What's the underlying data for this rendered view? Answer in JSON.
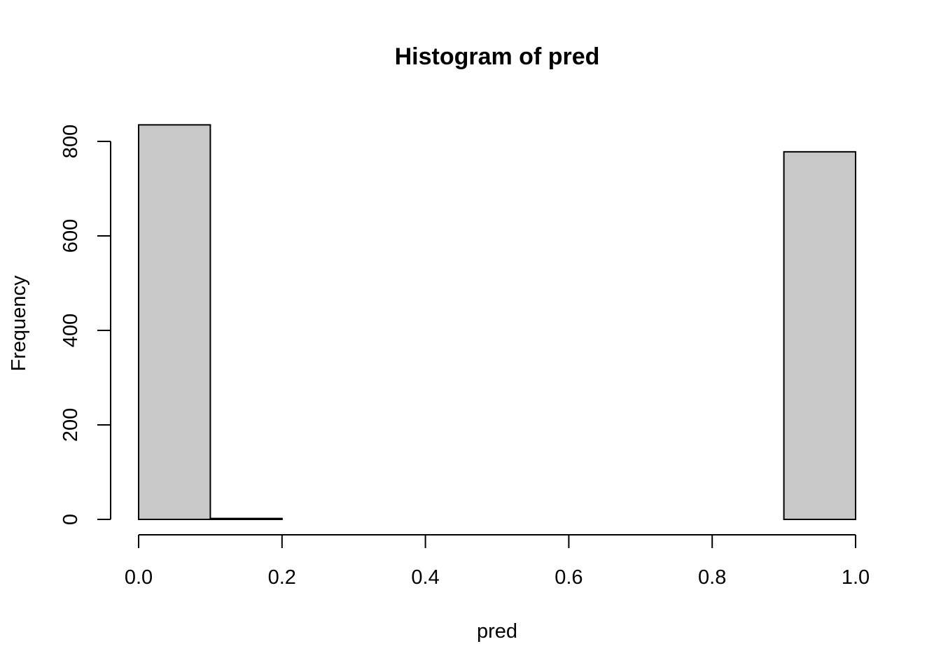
{
  "chart_data": {
    "type": "bar",
    "title": "Histogram of pred",
    "xlabel": "pred",
    "ylabel": "Frequency",
    "bins": [
      {
        "from": 0.0,
        "to": 0.1,
        "count": 835
      },
      {
        "from": 0.1,
        "to": 0.2,
        "count": 2
      },
      {
        "from": 0.2,
        "to": 0.3,
        "count": 0
      },
      {
        "from": 0.3,
        "to": 0.4,
        "count": 0
      },
      {
        "from": 0.4,
        "to": 0.5,
        "count": 0
      },
      {
        "from": 0.5,
        "to": 0.6,
        "count": 0
      },
      {
        "from": 0.6,
        "to": 0.7,
        "count": 0
      },
      {
        "from": 0.7,
        "to": 0.8,
        "count": 0
      },
      {
        "from": 0.8,
        "to": 0.9,
        "count": 0
      },
      {
        "from": 0.9,
        "to": 1.0,
        "count": 778
      }
    ],
    "xlim": [
      0,
      1
    ],
    "ylim": [
      0,
      835
    ],
    "x_ticks": [
      "0.0",
      "0.2",
      "0.4",
      "0.6",
      "0.8",
      "1.0"
    ],
    "y_ticks": [
      "0",
      "200",
      "400",
      "600",
      "800"
    ],
    "bar_color": "#c8c8c8",
    "grid": false,
    "legend": "none"
  }
}
